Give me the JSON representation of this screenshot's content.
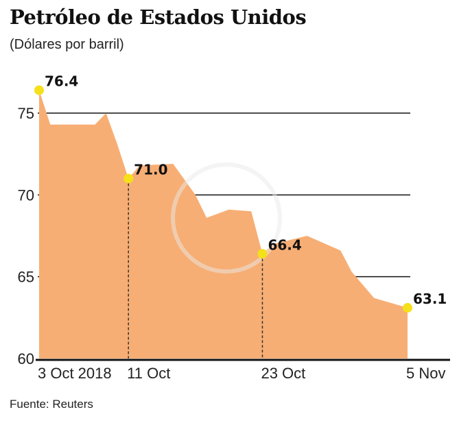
{
  "title": "Petróleo de Estados Unidos",
  "subtitle": "(Dólares por barril)",
  "source": "Fuente: Reuters",
  "colors": {
    "area": "#f7ae74",
    "highlight": "#f5e01a",
    "grid": "#111111"
  },
  "chart_data": {
    "type": "area",
    "title": "Petróleo de Estados Unidos",
    "ylabel": "(Dólares por barril)",
    "xlabel": "",
    "ylim": [
      60,
      76.5
    ],
    "yticks": [
      60,
      65,
      70,
      75
    ],
    "grid": true,
    "x_range": [
      "2018-10-03",
      "2018-11-05"
    ],
    "xticks": [
      {
        "date": "2018-10-03",
        "label": "3 Oct 2018"
      },
      {
        "date": "2018-10-11",
        "label": "11 Oct"
      },
      {
        "date": "2018-10-23",
        "label": "23 Oct"
      },
      {
        "date": "2018-11-05",
        "label": "5 Nov"
      }
    ],
    "series": [
      {
        "points": [
          [
            "2018-10-03",
            76.4
          ],
          [
            "2018-10-04",
            74.3
          ],
          [
            "2018-10-08",
            74.3
          ],
          [
            "2018-10-09",
            75.0
          ],
          [
            "2018-10-10",
            73.1
          ],
          [
            "2018-10-11",
            71.0
          ],
          [
            "2018-10-12",
            71.8
          ],
          [
            "2018-10-15",
            71.9
          ],
          [
            "2018-10-17",
            70.0
          ],
          [
            "2018-10-18",
            68.6
          ],
          [
            "2018-10-20",
            69.1
          ],
          [
            "2018-10-22",
            69.0
          ],
          [
            "2018-10-23",
            66.4
          ],
          [
            "2018-10-24",
            67.0
          ],
          [
            "2018-10-27",
            67.5
          ],
          [
            "2018-10-30",
            66.6
          ],
          [
            "2018-10-31",
            65.3
          ],
          [
            "2018-11-02",
            63.7
          ],
          [
            "2018-11-05",
            63.1
          ]
        ]
      }
    ],
    "annotations": [
      {
        "date": "2018-10-03",
        "value": 76.4,
        "label": "76.4",
        "dashed": false
      },
      {
        "date": "2018-10-11",
        "value": 71.0,
        "label": "71.0",
        "dashed": true
      },
      {
        "date": "2018-10-23",
        "value": 66.4,
        "label": "66.4",
        "dashed": true
      },
      {
        "date": "2018-11-05",
        "value": 63.1,
        "label": "63.1",
        "dashed": false
      }
    ]
  }
}
